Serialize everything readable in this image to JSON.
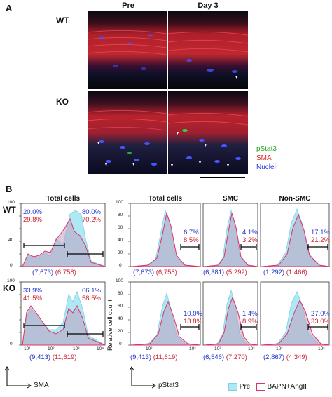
{
  "panel_a": {
    "letter": "A",
    "col_pre": "Pre",
    "col_day3": "Day 3",
    "row_wt": "WT",
    "row_ko": "KO",
    "legend": [
      {
        "label": "pStat3",
        "color": "#22aa22"
      },
      {
        "label": "SMA",
        "color": "#dd2222"
      },
      {
        "label": "Nuclei",
        "color": "#2233dd"
      }
    ]
  },
  "panel_b": {
    "letter": "B",
    "row_wt": "WT",
    "row_ko": "KO",
    "titles": [
      "Total cells",
      "Total cells",
      "SMC",
      "Non-SMC"
    ],
    "ylabel": "Relative cell count",
    "xlabel_left": "SMA",
    "xlabel_right": "pStat3",
    "legend_pre": "Pre",
    "legend_bapn": "BAPN+AngII",
    "color_pre": "#aee8f5",
    "color_bapn": "#e0306a",
    "wt": {
      "sma": {
        "pct_blue_left": "20.0%",
        "pct_red_left": "29.8%",
        "pct_blue_right": "80.0%",
        "pct_red_right": "70.2%",
        "count_blue": "(7,673)",
        "count_red": "(6,758)"
      },
      "total": {
        "pct_blue": "6.7%",
        "pct_red": "8.5%",
        "count_blue": "(7,673)",
        "count_red": "(6,758)"
      },
      "smc": {
        "pct_blue": "4.1%",
        "pct_red": "3.2%",
        "count_blue": "(6,381)",
        "count_red": "(5,292)"
      },
      "nonsmc": {
        "pct_blue": "17.1%",
        "pct_red": "21.2%",
        "count_blue": "(1,292)",
        "count_red": "(1,466)"
      }
    },
    "ko": {
      "sma": {
        "pct_blue_left": "33.9%",
        "pct_red_left": "41.5%",
        "pct_blue_right": "66.1%",
        "pct_red_right": "58.5%",
        "count_blue": "(9,413)",
        "count_red": "(11,619)"
      },
      "total": {
        "pct_blue": "10.0%",
        "pct_red": "18.8%",
        "count_blue": "(9,413)",
        "count_red": "(11,619)"
      },
      "smc": {
        "pct_blue": "1.4%",
        "pct_red": "8.9%",
        "count_blue": "(6,546)",
        "count_red": "(7,270)"
      },
      "nonsmc": {
        "pct_blue": "27.0%",
        "pct_red": "33.0%",
        "count_blue": "(2,867)",
        "count_red": "(4,349)"
      }
    },
    "y_ticks": [
      "0",
      "20",
      "40",
      "60",
      "80",
      "100"
    ],
    "x_ticks_sma": [
      "10¹",
      "10²",
      "10³",
      "10⁴"
    ],
    "x_ticks_pstat": [
      "10²",
      "10³"
    ]
  }
}
